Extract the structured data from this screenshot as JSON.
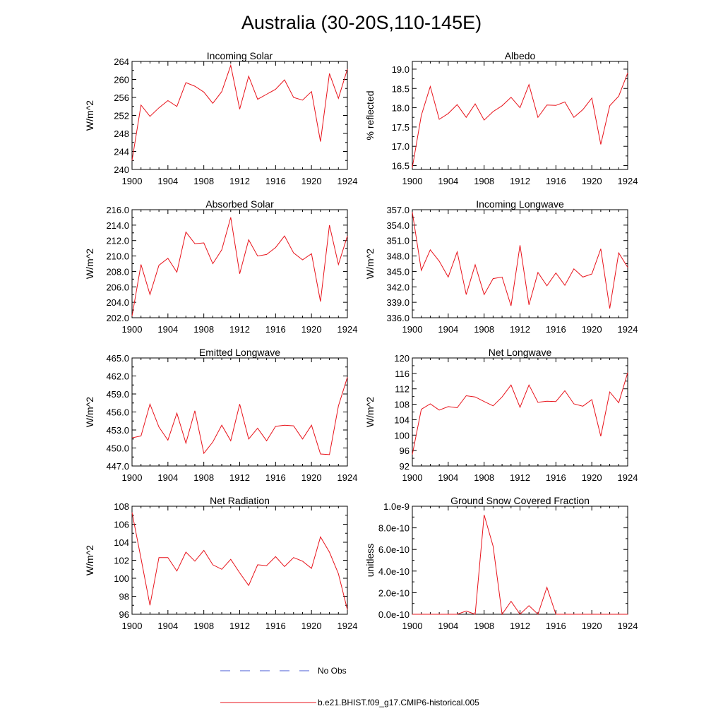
{
  "title": "Australia (30-20S,110-145E)",
  "legend": [
    {
      "label": "No Obs",
      "color": "#4a5bd4",
      "dashed": true
    },
    {
      "label": "b.e21.BHIST.f09_g17.CMIP6-historical.005",
      "color": "#e8131b",
      "dashed": false
    }
  ],
  "chart_data": [
    {
      "type": "line",
      "title": "Incoming Solar",
      "ylabel": "W/m^2",
      "xlim": [
        1900,
        1924
      ],
      "ylim": [
        240,
        264
      ],
      "x_ticks": [
        "1900",
        "1904",
        "1908",
        "1912",
        "1916",
        "1920",
        "1924"
      ],
      "y_ticks": [
        "240",
        "244",
        "248",
        "252",
        "256",
        "260",
        "264"
      ],
      "series": [
        {
          "color": "#e8131b",
          "x": [
            1900,
            1901,
            1902,
            1903,
            1904,
            1905,
            1906,
            1907,
            1908,
            1909,
            1910,
            1911,
            1912,
            1913,
            1914,
            1915,
            1916,
            1917,
            1918,
            1919,
            1920,
            1921,
            1922,
            1923,
            1924
          ],
          "values": [
            242.0,
            254.3,
            251.8,
            253.7,
            255.3,
            254.0,
            259.3,
            258.5,
            257.2,
            254.7,
            257.3,
            263.1,
            253.4,
            260.7,
            255.6,
            256.7,
            257.8,
            259.9,
            256.0,
            255.4,
            257.3,
            246.2,
            261.3,
            255.8,
            262.3
          ]
        }
      ]
    },
    {
      "type": "line",
      "title": "Albedo",
      "ylabel": "% reflected",
      "xlim": [
        1900,
        1924
      ],
      "ylim": [
        16.4,
        19.2
      ],
      "x_ticks": [
        "1900",
        "1904",
        "1908",
        "1912",
        "1916",
        "1920",
        "1924"
      ],
      "y_ticks": [
        "16.5",
        "17.0",
        "17.5",
        "18.0",
        "18.5",
        "19.0"
      ],
      "series": [
        {
          "color": "#e8131b",
          "x": [
            1900,
            1901,
            1902,
            1903,
            1904,
            1905,
            1906,
            1907,
            1908,
            1909,
            1910,
            1911,
            1912,
            1913,
            1914,
            1915,
            1916,
            1917,
            1918,
            1919,
            1920,
            1921,
            1922,
            1923,
            1924
          ],
          "values": [
            16.45,
            17.8,
            18.55,
            17.7,
            17.85,
            18.08,
            17.75,
            18.1,
            17.68,
            17.9,
            18.05,
            18.27,
            18.0,
            18.6,
            17.75,
            18.07,
            18.06,
            18.15,
            17.75,
            17.95,
            18.25,
            17.05,
            18.05,
            18.3,
            18.9
          ]
        }
      ]
    },
    {
      "type": "line",
      "title": "Absorbed Solar",
      "ylabel": "W/m^2",
      "xlim": [
        1900,
        1924
      ],
      "ylim": [
        202,
        216
      ],
      "x_ticks": [
        "1900",
        "1904",
        "1908",
        "1912",
        "1916",
        "1920",
        "1924"
      ],
      "y_ticks": [
        "202.0",
        "204.0",
        "206.0",
        "208.0",
        "210.0",
        "212.0",
        "214.0",
        "216.0"
      ],
      "series": [
        {
          "color": "#e8131b",
          "x": [
            1900,
            1901,
            1902,
            1903,
            1904,
            1905,
            1906,
            1907,
            1908,
            1909,
            1910,
            1911,
            1912,
            1913,
            1914,
            1915,
            1916,
            1917,
            1918,
            1919,
            1920,
            1921,
            1922,
            1923,
            1924
          ],
          "values": [
            202.2,
            208.9,
            205.0,
            208.8,
            209.7,
            207.9,
            213.1,
            211.6,
            211.7,
            209.0,
            210.8,
            215.0,
            207.7,
            212.1,
            210.0,
            210.2,
            211.1,
            212.6,
            210.4,
            209.5,
            210.3,
            204.1,
            214.0,
            208.9,
            212.6
          ]
        }
      ]
    },
    {
      "type": "line",
      "title": "Incoming Longwave",
      "ylabel": "W/m^2",
      "xlim": [
        1900,
        1924
      ],
      "ylim": [
        336,
        357
      ],
      "x_ticks": [
        "1900",
        "1904",
        "1908",
        "1912",
        "1916",
        "1920",
        "1924"
      ],
      "y_ticks": [
        "336.0",
        "339.0",
        "342.0",
        "345.0",
        "348.0",
        "351.0",
        "354.0",
        "357.0"
      ],
      "series": [
        {
          "color": "#e8131b",
          "x": [
            1900,
            1901,
            1902,
            1903,
            1904,
            1905,
            1906,
            1907,
            1908,
            1909,
            1910,
            1911,
            1912,
            1913,
            1914,
            1915,
            1916,
            1917,
            1918,
            1919,
            1920,
            1921,
            1922,
            1923,
            1924
          ],
          "values": [
            356.5,
            345.2,
            349.2,
            347.0,
            343.9,
            348.8,
            340.5,
            346.3,
            340.5,
            343.6,
            343.9,
            338.3,
            350.1,
            338.5,
            344.8,
            342.2,
            344.7,
            342.3,
            345.5,
            343.9,
            344.5,
            349.4,
            337.8,
            348.6,
            345.8
          ]
        }
      ]
    },
    {
      "type": "line",
      "title": "Emitted Longwave",
      "ylabel": "W/m^2",
      "xlim": [
        1900,
        1924
      ],
      "ylim": [
        447,
        465
      ],
      "x_ticks": [
        "1900",
        "1904",
        "1908",
        "1912",
        "1916",
        "1920",
        "1924"
      ],
      "y_ticks": [
        "447.0",
        "450.0",
        "453.0",
        "456.0",
        "459.0",
        "462.0",
        "465.0"
      ],
      "series": [
        {
          "color": "#e8131b",
          "x": [
            1900,
            1901,
            1902,
            1903,
            1904,
            1905,
            1906,
            1907,
            1908,
            1909,
            1910,
            1911,
            1912,
            1913,
            1914,
            1915,
            1916,
            1917,
            1918,
            1919,
            1920,
            1921,
            1922,
            1923,
            1924
          ],
          "values": [
            451.7,
            452.0,
            457.3,
            453.5,
            451.3,
            455.8,
            450.8,
            456.2,
            449.1,
            451.0,
            453.8,
            451.2,
            457.3,
            451.5,
            453.3,
            451.2,
            453.6,
            453.8,
            453.7,
            451.5,
            453.8,
            449.0,
            448.9,
            457.0,
            461.8
          ]
        }
      ]
    },
    {
      "type": "line",
      "title": "Net Longwave",
      "ylabel": "W/m^2",
      "xlim": [
        1900,
        1924
      ],
      "ylim": [
        92,
        120
      ],
      "x_ticks": [
        "1900",
        "1904",
        "1908",
        "1912",
        "1916",
        "1920",
        "1924"
      ],
      "y_ticks": [
        "92",
        "96",
        "100",
        "104",
        "108",
        "112",
        "116",
        "120"
      ],
      "series": [
        {
          "color": "#e8131b",
          "x": [
            1900,
            1901,
            1902,
            1903,
            1904,
            1905,
            1906,
            1907,
            1908,
            1909,
            1910,
            1911,
            1912,
            1913,
            1914,
            1915,
            1916,
            1917,
            1918,
            1919,
            1920,
            1921,
            1922,
            1923,
            1924
          ],
          "values": [
            95.0,
            106.7,
            108.1,
            106.5,
            107.4,
            107.1,
            110.2,
            109.9,
            108.7,
            107.6,
            109.9,
            113.0,
            107.2,
            113.0,
            108.5,
            108.8,
            108.7,
            111.5,
            108.1,
            107.5,
            109.2,
            99.7,
            111.2,
            108.4,
            116.2
          ]
        }
      ]
    },
    {
      "type": "line",
      "title": "Net Radiation",
      "ylabel": "W/m^2",
      "xlim": [
        1900,
        1924
      ],
      "ylim": [
        96,
        108
      ],
      "x_ticks": [
        "1900",
        "1904",
        "1908",
        "1912",
        "1916",
        "1920",
        "1924"
      ],
      "y_ticks": [
        "96",
        "98",
        "100",
        "102",
        "104",
        "106",
        "108"
      ],
      "series": [
        {
          "color": "#e8131b",
          "x": [
            1900,
            1901,
            1902,
            1903,
            1904,
            1905,
            1906,
            1907,
            1908,
            1909,
            1910,
            1911,
            1912,
            1913,
            1914,
            1915,
            1916,
            1917,
            1918,
            1919,
            1920,
            1921,
            1922,
            1923,
            1924
          ],
          "values": [
            107.3,
            102.2,
            97.0,
            102.3,
            102.3,
            100.8,
            102.9,
            101.9,
            103.1,
            101.5,
            101.0,
            102.1,
            100.6,
            99.2,
            101.5,
            101.4,
            102.4,
            101.3,
            102.3,
            101.9,
            101.1,
            104.6,
            102.9,
            100.5,
            96.5
          ]
        }
      ]
    },
    {
      "type": "line",
      "title": "Ground Snow Covered Fraction",
      "ylabel": "unitless",
      "xlim": [
        1900,
        1924
      ],
      "ylim": [
        0,
        1e-09
      ],
      "x_ticks": [
        "1900",
        "1904",
        "1908",
        "1912",
        "1916",
        "1920",
        "1924"
      ],
      "y_ticks": [
        "0.0e-10",
        "2.0e-10",
        "4.0e-10",
        "6.0e-10",
        "8.0e-10",
        "1.0e-9"
      ],
      "series": [
        {
          "color": "#e8131b",
          "x": [
            1900,
            1901,
            1902,
            1903,
            1904,
            1905,
            1906,
            1907,
            1908,
            1909,
            1910,
            1911,
            1912,
            1913,
            1914,
            1915,
            1916,
            1917,
            1918,
            1919,
            1920,
            1921,
            1922,
            1923,
            1924
          ],
          "values": [
            0,
            0,
            0,
            0,
            0,
            0,
            3e-11,
            0,
            9.2e-10,
            6.3e-10,
            0,
            1.2e-10,
            0,
            8e-11,
            0,
            2.5e-10,
            0,
            0,
            0,
            0,
            0,
            0,
            0,
            0,
            0
          ]
        }
      ]
    }
  ]
}
